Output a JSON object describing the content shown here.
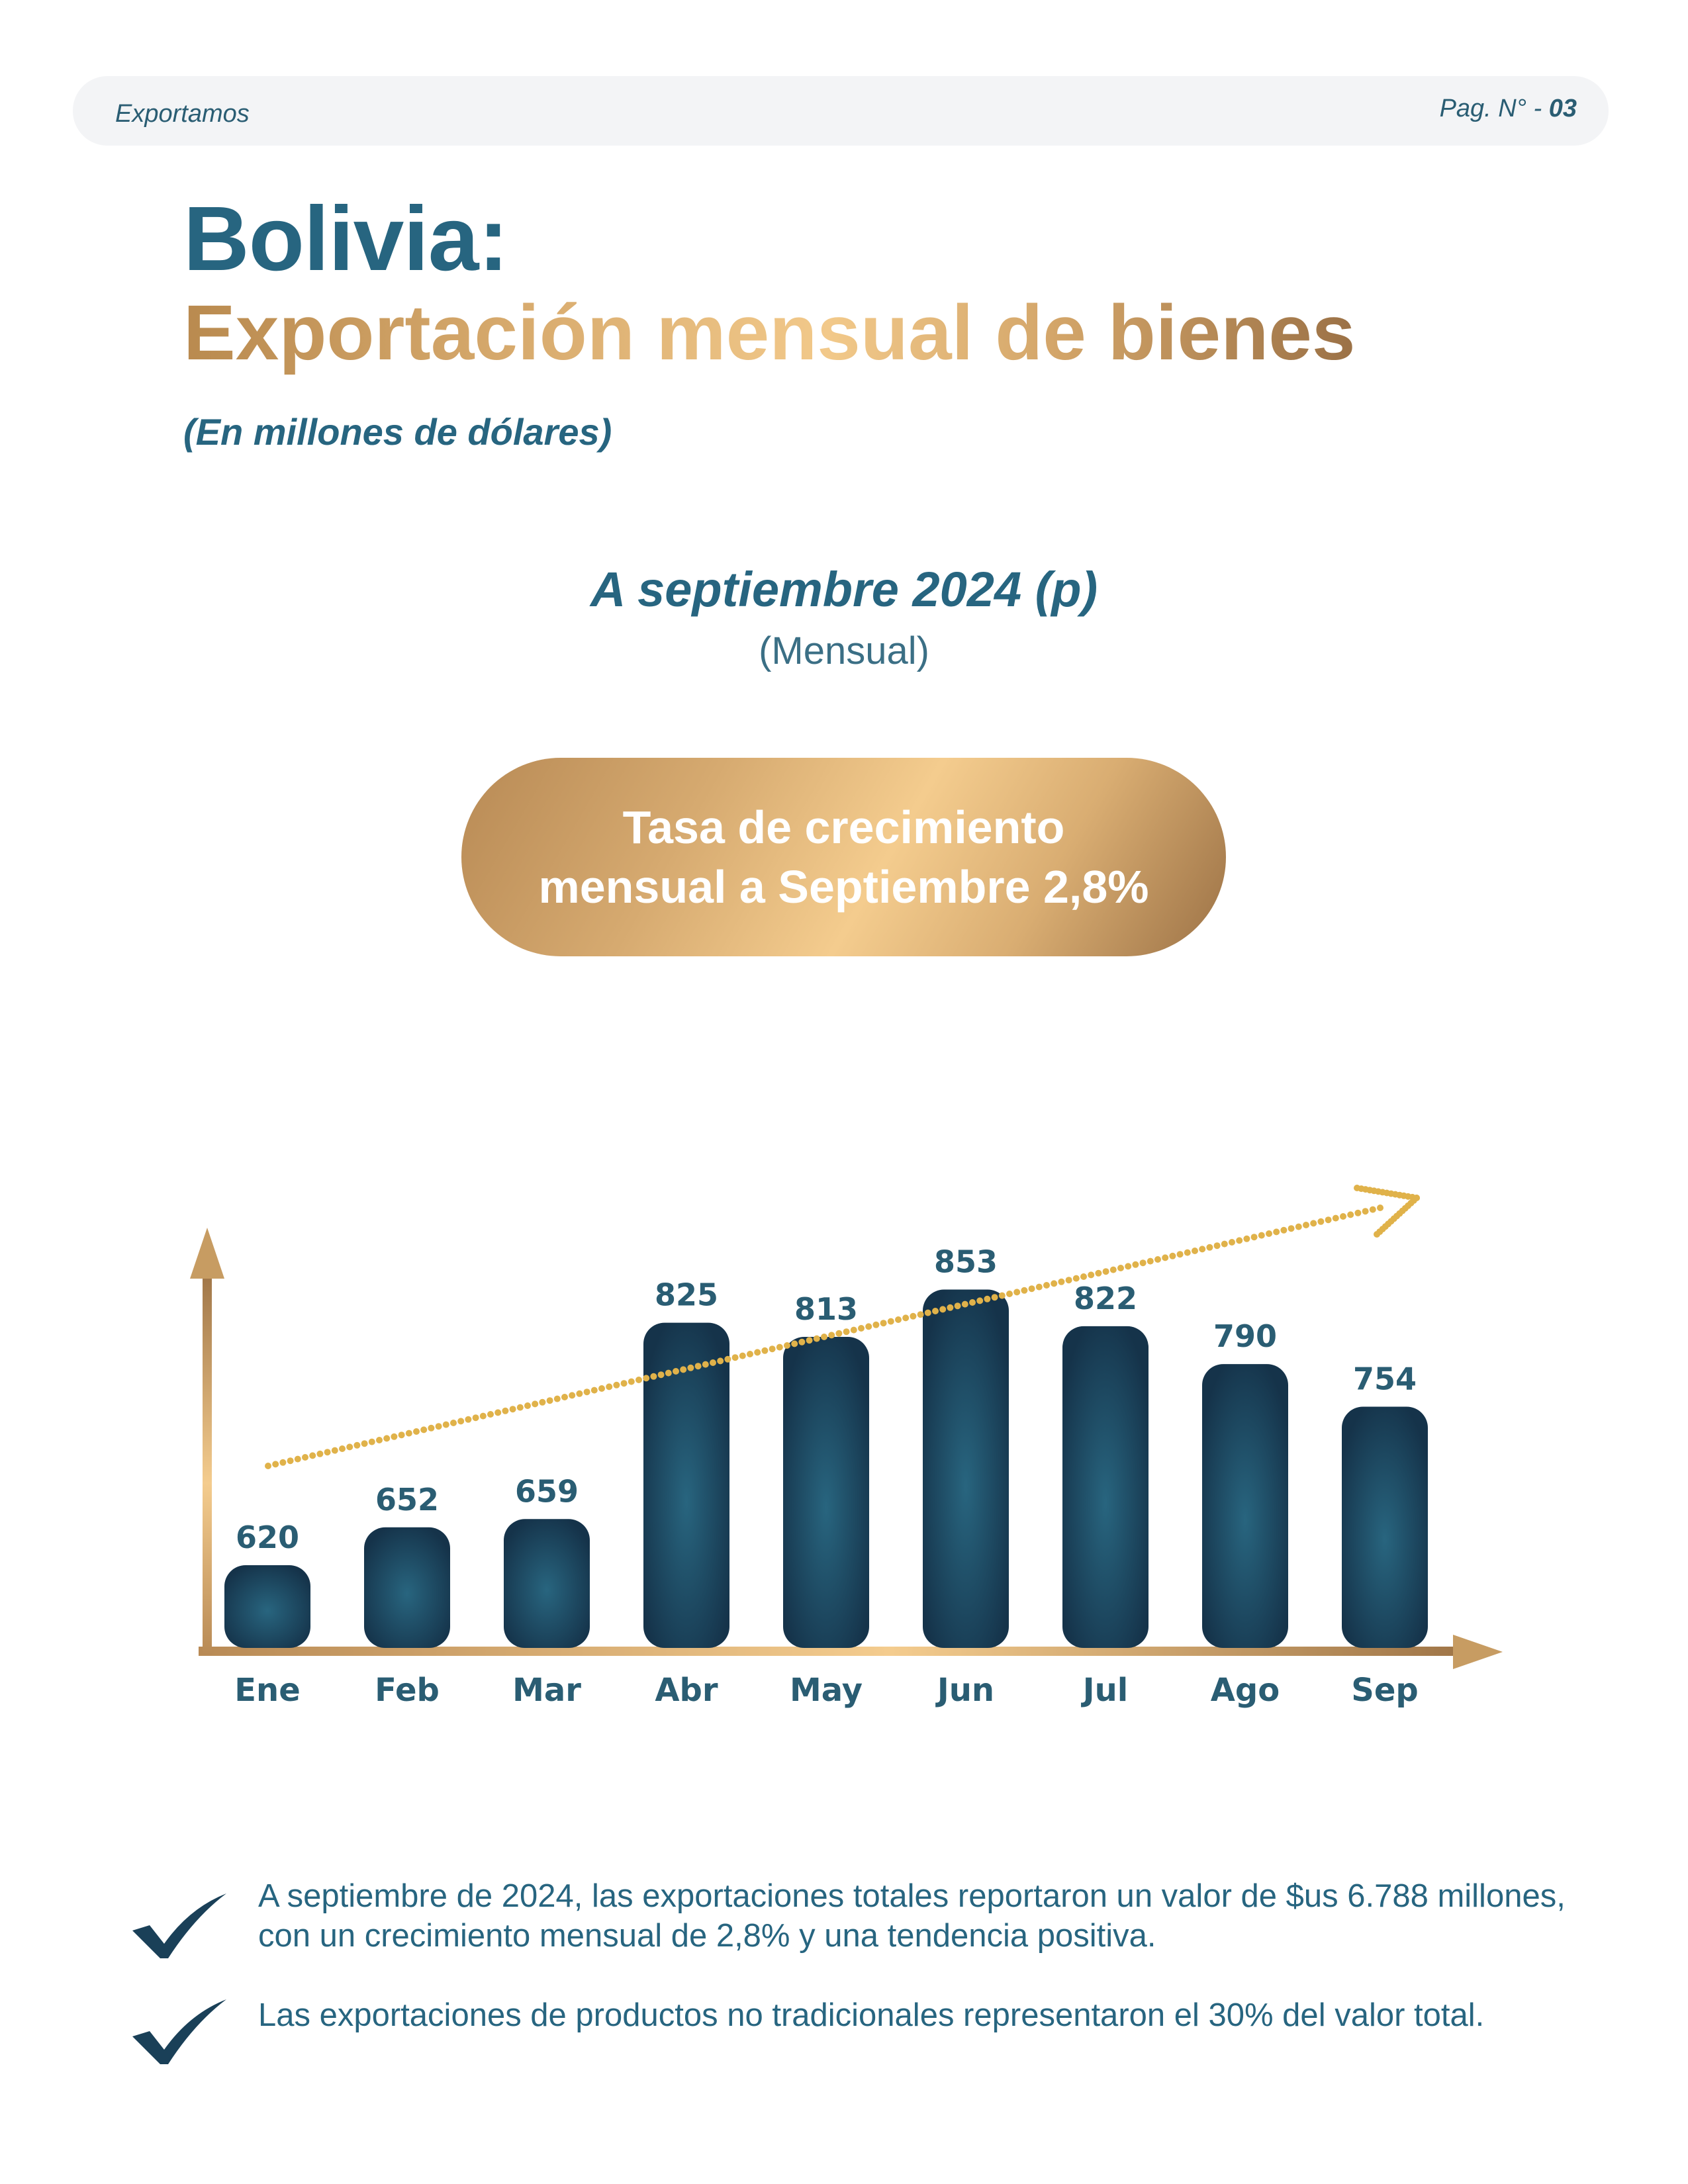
{
  "header": {
    "section": "Exportamos",
    "page_label": "Pag. N° -",
    "page_number": "03"
  },
  "title": {
    "main": "Bolivia:",
    "sub": "Exportación mensual de bienes",
    "unit": "(En millones de dólares)"
  },
  "period": {
    "label": "A septiembre 2024 (p)",
    "sub": "(Mensual)"
  },
  "badge": {
    "line1": "Tasa de crecimiento",
    "line2": "mensual a Septiembre 2,8%"
  },
  "chart_data": {
    "type": "bar",
    "categories": [
      "Ene",
      "Feb",
      "Mar",
      "Abr",
      "May",
      "Jun",
      "Jul",
      "Ago",
      "Sep"
    ],
    "values": [
      620,
      652,
      659,
      825,
      813,
      853,
      822,
      790,
      754
    ],
    "data_labels": [
      "620",
      "652",
      "659",
      "825",
      "813",
      "853",
      "822",
      "790",
      "754"
    ],
    "title": "",
    "xlabel": "",
    "ylabel": "",
    "ylim": [
      500,
      880
    ],
    "trend": "increasing",
    "grid": false,
    "colors": {
      "bar": "#1a4058",
      "label": "#2a5d73",
      "axis": "#d4a86a",
      "trend": "#e0b24a"
    }
  },
  "notes": [
    "A septiembre de 2024, las exportaciones totales reportaron un valor de $us 6.788 millones, con un crecimiento mensual de 2,8% y una tendencia positiva.",
    "Las exportaciones de productos no tradicionales representaron el 30% del valor total."
  ],
  "icons": {
    "note": "check-icon"
  }
}
